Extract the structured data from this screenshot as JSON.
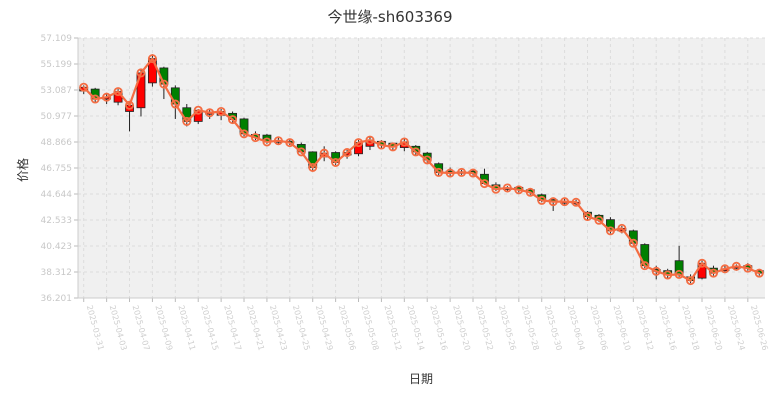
{
  "chart_data": {
    "type": "candlestick",
    "title": "今世缘-sh603369",
    "xlabel": "日期",
    "ylabel": "价格",
    "ylim": [
      36.201,
      57.109
    ],
    "yticks": [
      "57.109",
      "55.199",
      "53.087",
      "50.977",
      "48.866",
      "46.755",
      "44.644",
      "42.533",
      "40.423",
      "38.312",
      "36.201"
    ],
    "xtick_labels": [
      "2025-03-31",
      "2025-04-03",
      "2025-04-07",
      "2025-04-09",
      "2025-04-11",
      "2025-04-15",
      "2025-04-17",
      "2025-04-21",
      "2025-04-23",
      "2025-04-25",
      "2025-04-29",
      "2025-05-06",
      "2025-05-08",
      "2025-05-12",
      "2025-05-14",
      "2025-05-16",
      "2025-05-20",
      "2025-05-22",
      "2025-05-26",
      "2025-05-28",
      "2025-05-30",
      "2025-06-04",
      "2025-06-06",
      "2025-06-10",
      "2025-06-12",
      "2025-06-16",
      "2025-06-18",
      "2025-06-20",
      "2025-06-24",
      "2025-06-26"
    ],
    "close_line_color": "#f46d43",
    "up_color": "#ff0000",
    "down_color": "#008000",
    "grid": true,
    "candles": [
      {
        "open": 52.85,
        "close": 53.15,
        "low": 52.6,
        "high": 53.3
      },
      {
        "open": 53.0,
        "close": 52.2,
        "low": 51.9,
        "high": 53.1
      },
      {
        "open": 52.2,
        "close": 52.35,
        "low": 51.8,
        "high": 52.6
      },
      {
        "open": 51.95,
        "close": 52.8,
        "low": 51.7,
        "high": 53.0
      },
      {
        "open": 51.2,
        "close": 51.7,
        "low": 49.6,
        "high": 52.0
      },
      {
        "open": 51.5,
        "close": 54.3,
        "low": 50.8,
        "high": 54.6
      },
      {
        "open": 53.5,
        "close": 55.45,
        "low": 53.2,
        "high": 55.8
      },
      {
        "open": 54.7,
        "close": 53.4,
        "low": 52.2,
        "high": 54.8
      },
      {
        "open": 53.1,
        "close": 51.8,
        "low": 50.6,
        "high": 53.3
      },
      {
        "open": 51.5,
        "close": 50.4,
        "low": 50.0,
        "high": 51.8
      },
      {
        "open": 50.4,
        "close": 51.3,
        "low": 50.2,
        "high": 51.4
      },
      {
        "open": 51.1,
        "close": 51.1,
        "low": 50.6,
        "high": 51.4
      },
      {
        "open": 50.9,
        "close": 51.2,
        "low": 50.5,
        "high": 51.4
      },
      {
        "open": 51.05,
        "close": 50.55,
        "low": 50.3,
        "high": 51.2
      },
      {
        "open": 50.6,
        "close": 49.4,
        "low": 49.2,
        "high": 50.7
      },
      {
        "open": 49.35,
        "close": 49.1,
        "low": 48.9,
        "high": 49.6
      },
      {
        "open": 49.3,
        "close": 48.75,
        "low": 48.6,
        "high": 49.4
      },
      {
        "open": 48.8,
        "close": 48.85,
        "low": 48.6,
        "high": 49.1
      },
      {
        "open": 48.8,
        "close": 48.7,
        "low": 48.5,
        "high": 49.0
      },
      {
        "open": 48.55,
        "close": 47.95,
        "low": 47.8,
        "high": 48.7
      },
      {
        "open": 47.95,
        "close": 46.7,
        "low": 46.4,
        "high": 48.0
      },
      {
        "open": 47.55,
        "close": 47.85,
        "low": 47.2,
        "high": 48.4
      },
      {
        "open": 47.9,
        "close": 47.1,
        "low": 46.9,
        "high": 48.0
      },
      {
        "open": 47.7,
        "close": 47.9,
        "low": 47.4,
        "high": 48.1
      },
      {
        "open": 47.8,
        "close": 48.7,
        "low": 47.6,
        "high": 48.9
      },
      {
        "open": 48.4,
        "close": 48.9,
        "low": 48.1,
        "high": 49.2
      },
      {
        "open": 48.8,
        "close": 48.5,
        "low": 48.2,
        "high": 48.9
      },
      {
        "open": 48.65,
        "close": 48.35,
        "low": 48.1,
        "high": 48.7
      },
      {
        "open": 48.3,
        "close": 48.75,
        "low": 48.0,
        "high": 49.1
      },
      {
        "open": 48.4,
        "close": 47.95,
        "low": 47.7,
        "high": 48.5
      },
      {
        "open": 47.85,
        "close": 47.3,
        "low": 47.1,
        "high": 47.95
      },
      {
        "open": 47.0,
        "close": 46.3,
        "low": 46.0,
        "high": 47.1
      },
      {
        "open": 46.4,
        "close": 46.25,
        "low": 46.0,
        "high": 46.7
      },
      {
        "open": 46.35,
        "close": 46.3,
        "low": 46.1,
        "high": 46.5
      },
      {
        "open": 46.4,
        "close": 46.25,
        "low": 46.05,
        "high": 46.5
      },
      {
        "open": 46.15,
        "close": 45.4,
        "low": 45.3,
        "high": 46.6
      },
      {
        "open": 45.3,
        "close": 44.95,
        "low": 44.8,
        "high": 45.5
      },
      {
        "open": 45.0,
        "close": 45.05,
        "low": 44.8,
        "high": 45.2
      },
      {
        "open": 45.1,
        "close": 44.9,
        "low": 44.7,
        "high": 45.2
      },
      {
        "open": 44.9,
        "close": 44.7,
        "low": 44.5,
        "high": 45.0
      },
      {
        "open": 44.5,
        "close": 44.05,
        "low": 43.9,
        "high": 44.6
      },
      {
        "open": 44.1,
        "close": 43.95,
        "low": 43.2,
        "high": 44.2
      },
      {
        "open": 43.85,
        "close": 43.95,
        "low": 43.7,
        "high": 44.2
      },
      {
        "open": 43.9,
        "close": 43.9,
        "low": 43.6,
        "high": 44.1
      },
      {
        "open": 43.1,
        "close": 42.75,
        "low": 42.4,
        "high": 43.2
      },
      {
        "open": 42.85,
        "close": 42.45,
        "low": 42.3,
        "high": 42.95
      },
      {
        "open": 42.5,
        "close": 41.6,
        "low": 41.4,
        "high": 42.7
      },
      {
        "open": 41.6,
        "close": 41.8,
        "low": 41.4,
        "high": 42.0
      },
      {
        "open": 41.6,
        "close": 40.6,
        "low": 40.4,
        "high": 41.7
      },
      {
        "open": 40.5,
        "close": 38.8,
        "low": 38.6,
        "high": 40.6
      },
      {
        "open": 38.5,
        "close": 38.35,
        "low": 37.7,
        "high": 38.8
      },
      {
        "open": 38.4,
        "close": 38.05,
        "low": 37.8,
        "high": 38.55
      },
      {
        "open": 39.2,
        "close": 38.1,
        "low": 37.9,
        "high": 40.4
      },
      {
        "open": 37.9,
        "close": 37.6,
        "low": 37.4,
        "high": 38.1
      },
      {
        "open": 37.8,
        "close": 39.0,
        "low": 37.7,
        "high": 39.2
      },
      {
        "open": 38.6,
        "close": 38.2,
        "low": 38.0,
        "high": 38.8
      },
      {
        "open": 38.4,
        "close": 38.55,
        "low": 38.2,
        "high": 38.8
      },
      {
        "open": 38.6,
        "close": 38.75,
        "low": 38.4,
        "high": 38.9
      },
      {
        "open": 38.8,
        "close": 38.6,
        "low": 38.4,
        "high": 39.0
      },
      {
        "open": 38.4,
        "close": 38.2,
        "low": 38.0,
        "high": 38.5
      }
    ]
  }
}
